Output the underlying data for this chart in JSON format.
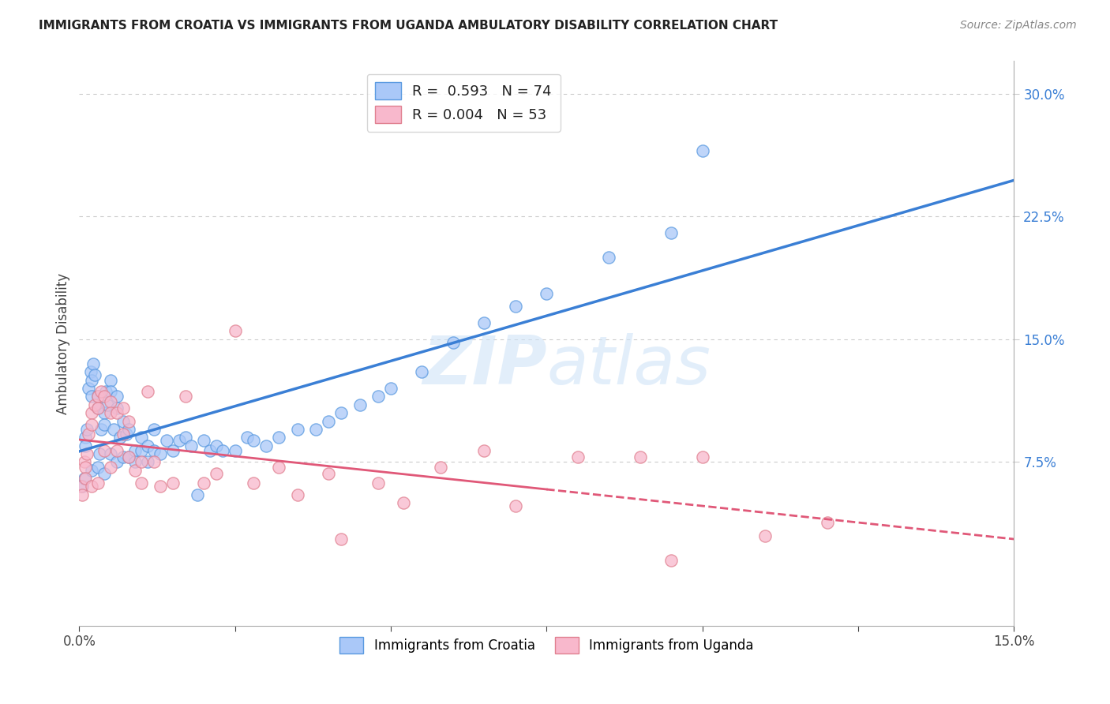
{
  "title": "IMMIGRANTS FROM CROATIA VS IMMIGRANTS FROM UGANDA AMBULATORY DISABILITY CORRELATION CHART",
  "source": "Source: ZipAtlas.com",
  "ylabel": "Ambulatory Disability",
  "xlim": [
    0.0,
    0.15
  ],
  "ylim": [
    -0.025,
    0.32
  ],
  "ytick_labels_right": [
    "30.0%",
    "22.5%",
    "15.0%",
    "7.5%"
  ],
  "ytick_vals_right": [
    0.3,
    0.225,
    0.15,
    0.075
  ],
  "croatia_color": "#aac8f8",
  "croatia_color_edge": "#5a9ae0",
  "croatia_line_color": "#3a7fd5",
  "uganda_color": "#f8b8cc",
  "uganda_color_edge": "#e08090",
  "uganda_line_color": "#e05878",
  "R_croatia": 0.593,
  "N_croatia": 74,
  "R_uganda": 0.004,
  "N_uganda": 53,
  "legend_label_croatia": "Immigrants from Croatia",
  "legend_label_uganda": "Immigrants from Uganda",
  "croatia_x": [
    0.0005,
    0.0008,
    0.001,
    0.001,
    0.0012,
    0.0015,
    0.0018,
    0.002,
    0.002,
    0.002,
    0.0022,
    0.0025,
    0.003,
    0.003,
    0.003,
    0.0032,
    0.0035,
    0.004,
    0.004,
    0.004,
    0.0042,
    0.0045,
    0.005,
    0.005,
    0.005,
    0.0055,
    0.006,
    0.006,
    0.006,
    0.0065,
    0.007,
    0.007,
    0.0075,
    0.008,
    0.008,
    0.009,
    0.009,
    0.01,
    0.01,
    0.011,
    0.011,
    0.012,
    0.012,
    0.013,
    0.014,
    0.015,
    0.016,
    0.017,
    0.018,
    0.019,
    0.02,
    0.021,
    0.022,
    0.023,
    0.025,
    0.027,
    0.028,
    0.03,
    0.032,
    0.035,
    0.038,
    0.04,
    0.042,
    0.045,
    0.048,
    0.05,
    0.055,
    0.06,
    0.065,
    0.07,
    0.075,
    0.085,
    0.095,
    0.1
  ],
  "croatia_y": [
    0.06,
    0.065,
    0.09,
    0.085,
    0.095,
    0.12,
    0.13,
    0.125,
    0.115,
    0.07,
    0.135,
    0.128,
    0.115,
    0.108,
    0.072,
    0.08,
    0.095,
    0.105,
    0.098,
    0.068,
    0.118,
    0.11,
    0.125,
    0.118,
    0.08,
    0.095,
    0.115,
    0.108,
    0.075,
    0.09,
    0.1,
    0.078,
    0.092,
    0.095,
    0.078,
    0.082,
    0.075,
    0.09,
    0.082,
    0.085,
    0.075,
    0.095,
    0.082,
    0.08,
    0.088,
    0.082,
    0.088,
    0.09,
    0.085,
    0.055,
    0.088,
    0.082,
    0.085,
    0.082,
    0.082,
    0.09,
    0.088,
    0.085,
    0.09,
    0.095,
    0.095,
    0.1,
    0.105,
    0.11,
    0.115,
    0.12,
    0.13,
    0.148,
    0.16,
    0.17,
    0.178,
    0.2,
    0.215,
    0.265
  ],
  "uganda_x": [
    0.0003,
    0.0005,
    0.0008,
    0.001,
    0.001,
    0.0012,
    0.0015,
    0.002,
    0.002,
    0.002,
    0.0025,
    0.003,
    0.003,
    0.003,
    0.0035,
    0.004,
    0.004,
    0.005,
    0.005,
    0.005,
    0.006,
    0.006,
    0.007,
    0.007,
    0.008,
    0.008,
    0.009,
    0.01,
    0.01,
    0.011,
    0.012,
    0.013,
    0.015,
    0.017,
    0.02,
    0.022,
    0.025,
    0.028,
    0.032,
    0.035,
    0.04,
    0.042,
    0.048,
    0.052,
    0.058,
    0.065,
    0.07,
    0.08,
    0.09,
    0.095,
    0.1,
    0.11,
    0.12
  ],
  "uganda_y": [
    0.06,
    0.055,
    0.075,
    0.072,
    0.065,
    0.08,
    0.092,
    0.105,
    0.098,
    0.06,
    0.11,
    0.115,
    0.108,
    0.062,
    0.118,
    0.115,
    0.082,
    0.112,
    0.105,
    0.072,
    0.105,
    0.082,
    0.108,
    0.092,
    0.1,
    0.078,
    0.07,
    0.075,
    0.062,
    0.118,
    0.075,
    0.06,
    0.062,
    0.115,
    0.062,
    0.068,
    0.155,
    0.062,
    0.072,
    0.055,
    0.068,
    0.028,
    0.062,
    0.05,
    0.072,
    0.082,
    0.048,
    0.078,
    0.078,
    0.015,
    0.078,
    0.03,
    0.038
  ]
}
